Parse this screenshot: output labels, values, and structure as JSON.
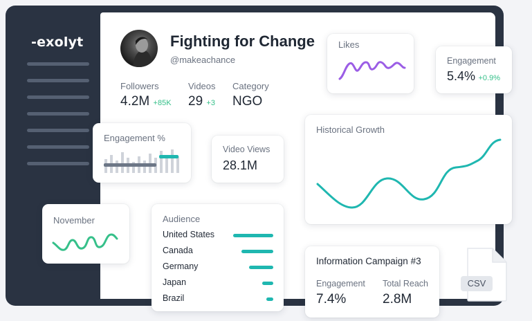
{
  "sidebar": {
    "logo": "-exolyt"
  },
  "profile": {
    "name": "Fighting for Change",
    "handle": "@makeachance",
    "stats": [
      {
        "label": "Followers",
        "value": "4.2M",
        "delta": "+85K"
      },
      {
        "label": "Videos",
        "value": "29",
        "delta": "+3"
      },
      {
        "label": "Category",
        "value": "NGO",
        "delta": ""
      }
    ]
  },
  "likes": {
    "title": "Likes",
    "line_color": "#9b5de5"
  },
  "engagement": {
    "title": "Engagement",
    "value": "5.4%",
    "delta": "+0.9%"
  },
  "engagement_pct": {
    "title": "Engagement %"
  },
  "video_views": {
    "title": "Video Views",
    "value": "28.1M"
  },
  "historical": {
    "title": "Historical Growth"
  },
  "november": {
    "title": "November"
  },
  "audience": {
    "title": "Audience",
    "rows": [
      {
        "country": "United States",
        "share": 1.0
      },
      {
        "country": "Canada",
        "share": 0.8
      },
      {
        "country": "Germany",
        "share": 0.6
      },
      {
        "country": "Japan",
        "share": 0.28
      },
      {
        "country": "Brazil",
        "share": 0.18
      }
    ]
  },
  "campaign": {
    "title": "Information Campaign #3",
    "metrics": [
      {
        "label": "Engagement",
        "value": "7.4%"
      },
      {
        "label": "Total Reach",
        "value": "2.8M"
      }
    ]
  },
  "csv": {
    "label": "CSV"
  },
  "colors": {
    "accent": "#1fb7b0",
    "positive": "#36c08a",
    "frame": "#2a3342",
    "purple": "#9b5de5"
  }
}
